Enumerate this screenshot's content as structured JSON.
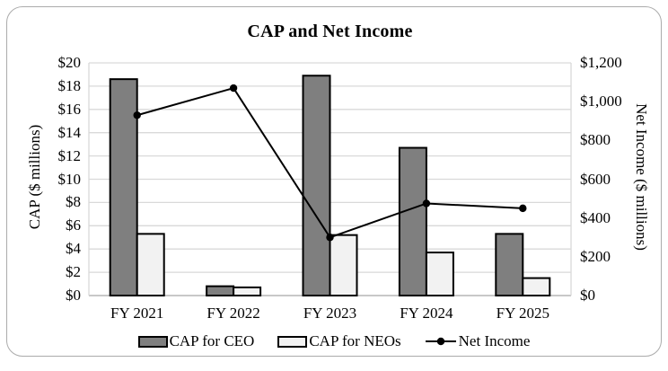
{
  "chart_data": {
    "type": "bar+line",
    "title": "CAP and Net Income",
    "categories": [
      "FY 2021",
      "FY 2022",
      "FY 2023",
      "FY 2024",
      "FY 2025"
    ],
    "series": [
      {
        "name": "CAP for CEO",
        "type": "bar",
        "axis": "left",
        "color": "#7f7f7f",
        "values": [
          18.6,
          0.8,
          18.9,
          12.7,
          5.3
        ]
      },
      {
        "name": "CAP for NEOs",
        "type": "bar",
        "axis": "left",
        "color": "#f2f2f2",
        "values": [
          5.3,
          0.7,
          5.2,
          3.7,
          1.5
        ]
      },
      {
        "name": "Net Income",
        "type": "line",
        "axis": "right",
        "color": "#000000",
        "values": [
          930,
          1070,
          300,
          475,
          450
        ]
      }
    ],
    "xlabel": "",
    "ylabel_left": "CAP ($ millions)",
    "ylabel_right": "Net Income ($ millions)",
    "ylim_left": [
      0,
      20
    ],
    "ylim_right": [
      0,
      1200
    ],
    "yticks_left": [
      "$20",
      "$18",
      "$16",
      "$14",
      "$12",
      "$10",
      "$8",
      "$6",
      "$4",
      "$2",
      "$0"
    ],
    "yticks_right": [
      "$1,200",
      "$1,000",
      "$800",
      "$600",
      "$400",
      "$200",
      "$0"
    ],
    "grid": true,
    "gridline_color": "#d9d9d9",
    "axis_line_color": "#a6a6a6",
    "legend_position": "bottom"
  }
}
